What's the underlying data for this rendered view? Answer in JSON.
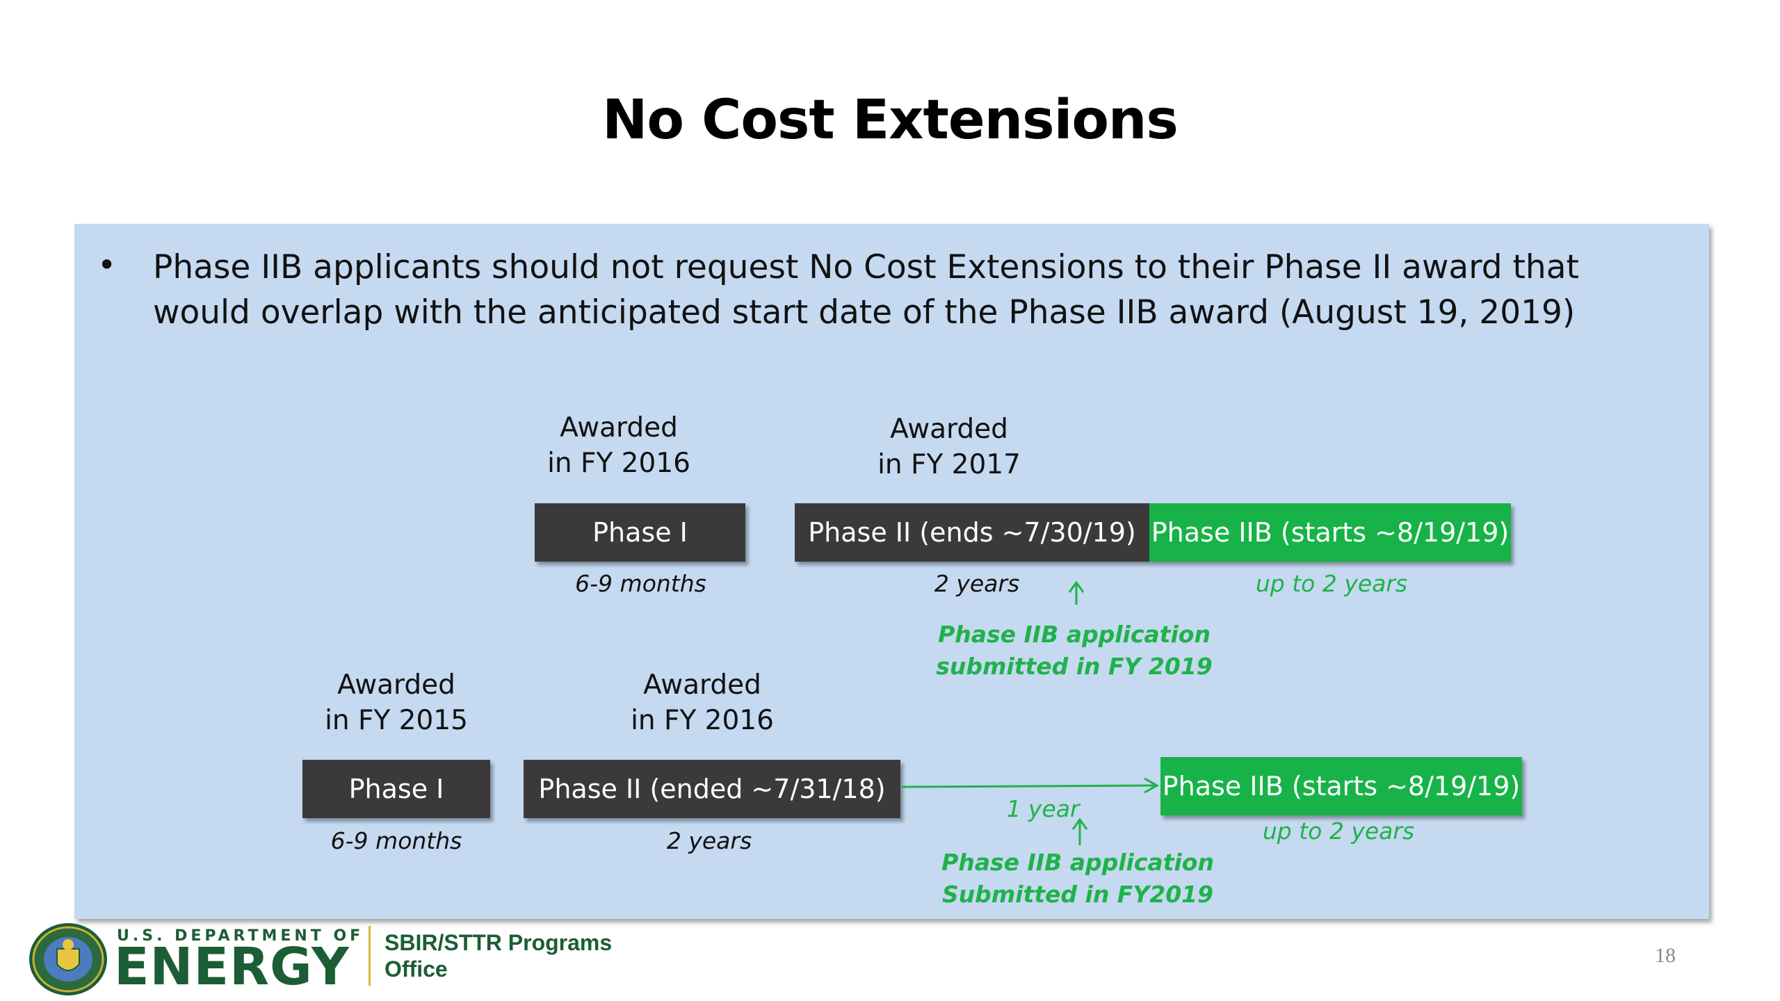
{
  "title": "No Cost Extensions",
  "bullet": "Phase IIB applicants should not request No Cost Extensions to their Phase II award that would overlap with the anticipated start date of the Phase IIB award  (August 19, 2019)",
  "row1": {
    "label_phase1": "Awarded\nin FY 2016",
    "label_phase2": "Awarded\nin FY 2017",
    "phase1_box": "Phase I",
    "phase2_box": "Phase II (ends ~7/30/19)",
    "phase2b_box": "Phase IIB (starts ~8/19/19)",
    "phase1_duration": "6-9 months",
    "phase2_duration": "2 years",
    "phase2b_duration": "up to 2 years",
    "application_note": "Phase IIB application\nsubmitted in FY 2019"
  },
  "row2": {
    "label_phase1": "Awarded\nin FY 2015",
    "label_phase2": "Awarded\nin FY 2016",
    "phase1_box": "Phase I",
    "phase2_box": "Phase II (ended ~7/31/18)",
    "phase2b_box": "Phase IIB (starts ~8/19/19)",
    "phase1_duration": "6-9 months",
    "phase2_duration": "2 years",
    "phase2b_duration": "up to 2 years",
    "gap_label": "1 year",
    "application_note": "Phase IIB application\nSubmitted in FY2019"
  },
  "footer": {
    "dept_line": "U.S. DEPARTMENT OF",
    "energy_word": "ENERGY",
    "office": "SBIR/STTR Programs\nOffice",
    "page_number": "18"
  },
  "colors": {
    "panel": "#c5d9f0",
    "dark_box": "#3a3a3a",
    "green": "#18b348",
    "doe_green": "#1b5d34"
  }
}
